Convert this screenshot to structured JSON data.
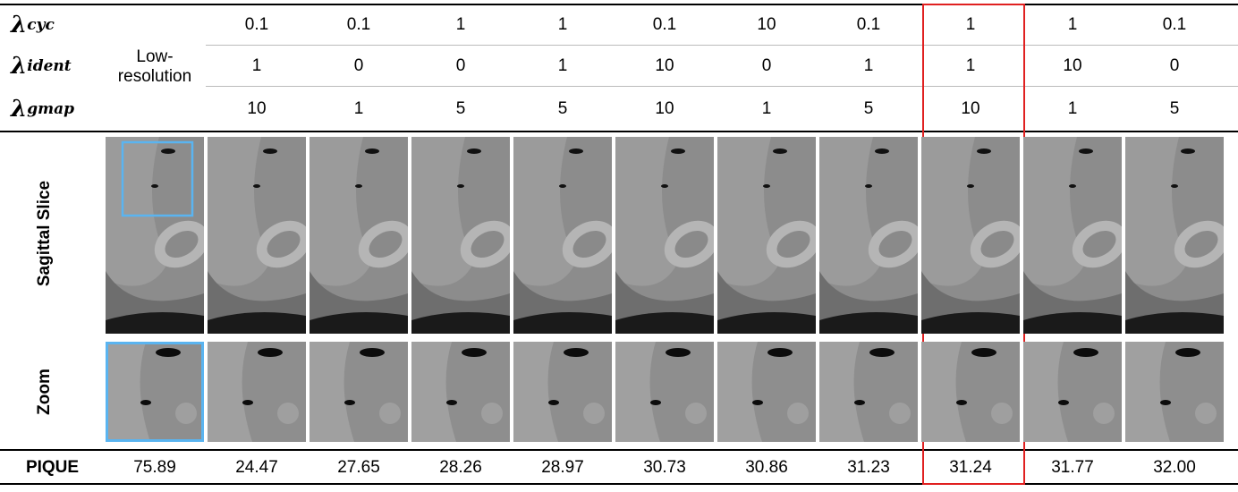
{
  "parameters": [
    {
      "symbol": "λ",
      "subscript": "cyc",
      "values": [
        "0.1",
        "0.1",
        "1",
        "1",
        "0.1",
        "10",
        "0.1",
        "1",
        "1",
        "0.1"
      ]
    },
    {
      "symbol": "λ",
      "subscript": "ident",
      "values": [
        "1",
        "0",
        "0",
        "1",
        "10",
        "0",
        "1",
        "1",
        "10",
        "0"
      ]
    },
    {
      "symbol": "λ",
      "subscript": "gmap",
      "values": [
        "10",
        "1",
        "5",
        "5",
        "10",
        "1",
        "5",
        "10",
        "1",
        "5"
      ]
    }
  ],
  "low_resolution_label": "Low-resolution",
  "image_rows": [
    "Sagittal Slice",
    "Zoom"
  ],
  "metric": {
    "label": "PIQUE",
    "values": [
      "75.89",
      "24.47",
      "27.65",
      "28.26",
      "28.97",
      "30.73",
      "30.86",
      "31.23",
      "31.24",
      "31.77",
      "32.00"
    ]
  }
}
